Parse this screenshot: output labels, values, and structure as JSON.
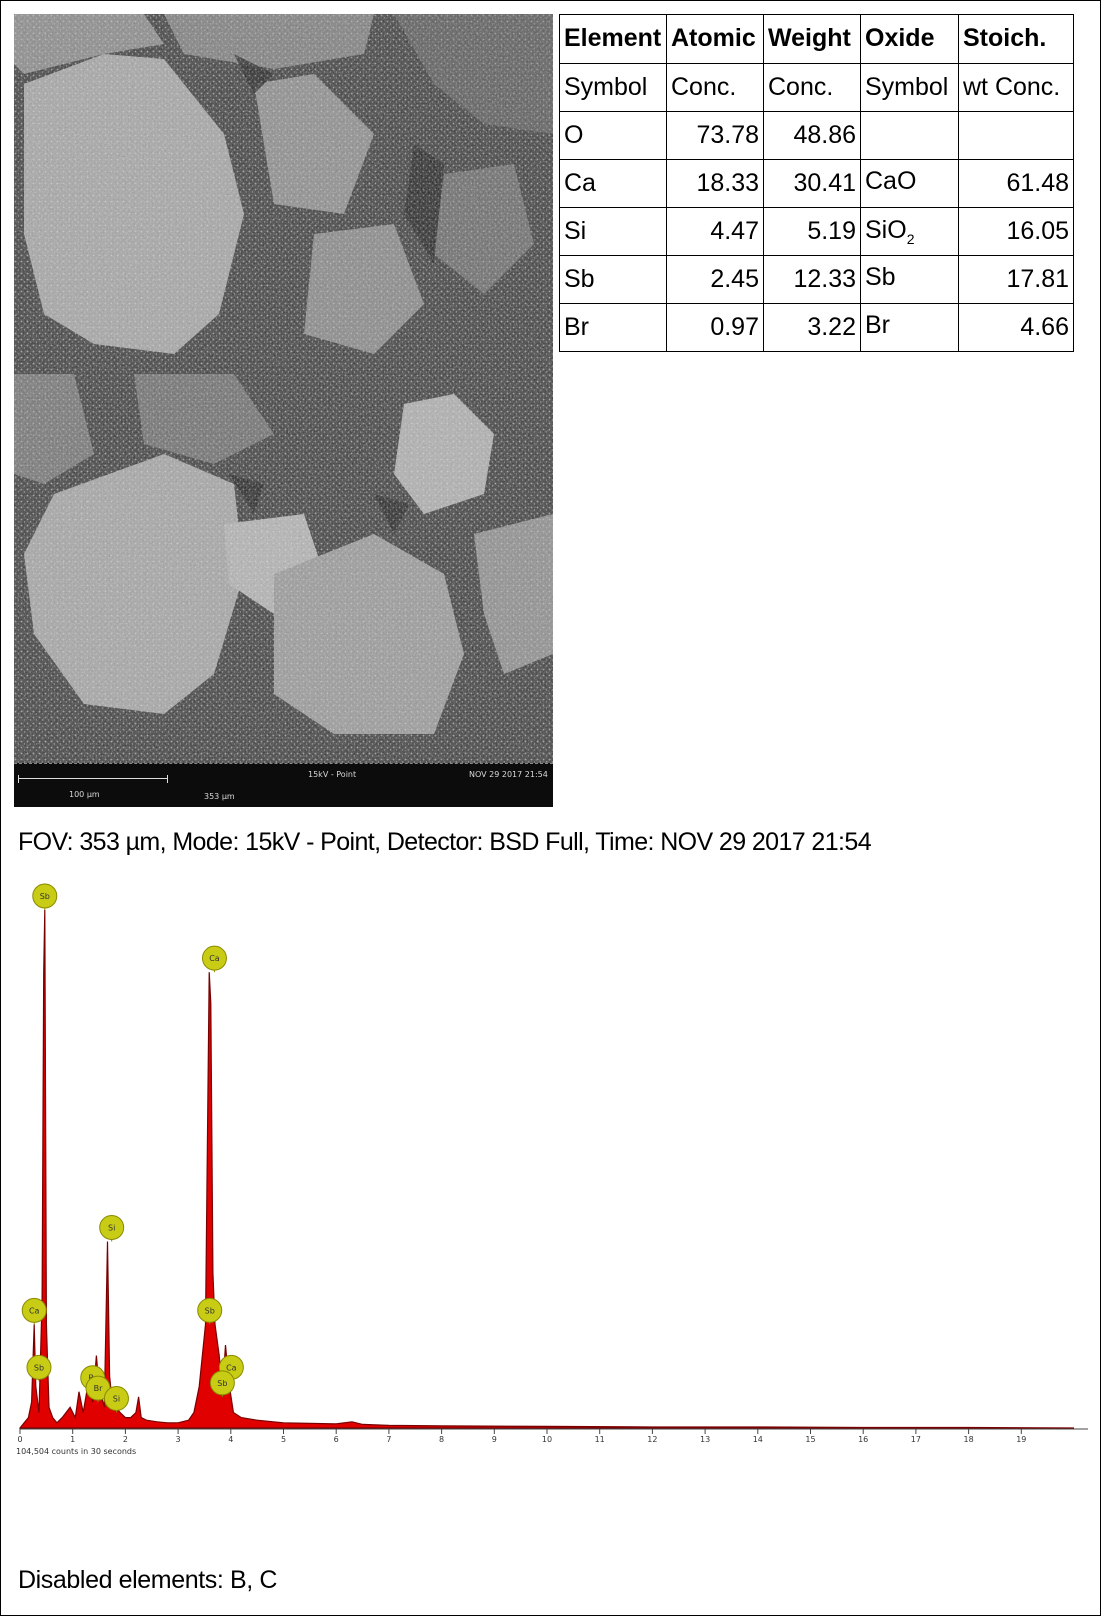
{
  "sem_image": {
    "scale_label": "100 µm",
    "fov_label": "353 µm",
    "mode_label": "15kV - Point",
    "timestamp": "NOV 29 2017 21:54"
  },
  "table": {
    "headers": [
      [
        "Element",
        "Symbol"
      ],
      [
        "Atomic",
        "Conc."
      ],
      [
        "Weight",
        "Conc."
      ],
      [
        "Oxide",
        "Symbol"
      ],
      [
        "Stoich.",
        "wt Conc."
      ]
    ],
    "rows": [
      {
        "element": "O",
        "atomic": "73.78",
        "weight": "48.86",
        "oxide": "",
        "oxide_sub": "",
        "stoich": ""
      },
      {
        "element": "Ca",
        "atomic": "18.33",
        "weight": "30.41",
        "oxide": "CaO",
        "oxide_sub": "",
        "stoich": "61.48"
      },
      {
        "element": "Si",
        "atomic": "4.47",
        "weight": "5.19",
        "oxide": "SiO",
        "oxide_sub": "2",
        "stoich": "16.05"
      },
      {
        "element": "Sb",
        "atomic": "2.45",
        "weight": "12.33",
        "oxide": "Sb",
        "oxide_sub": "",
        "stoich": "17.81"
      },
      {
        "element": "Br",
        "atomic": "0.97",
        "weight": "3.22",
        "oxide": "Br",
        "oxide_sub": "",
        "stoich": "4.66"
      }
    ]
  },
  "caption": "FOV: 353 µm, Mode: 15kV - Point, Detector: BSD Full, Time: NOV 29 2017 21:54",
  "footer": "Disabled elements: B, C",
  "colors": {
    "spectrum_fill": "#e00000",
    "spectrum_edge": "#7a0000",
    "marker_fill": "#c8cc14",
    "marker_edge": "#8a8a00"
  },
  "chart_data": {
    "type": "area",
    "title": "",
    "xlabel": "",
    "ylabel": "",
    "xlim": [
      0,
      20
    ],
    "ylim": [
      0,
      100
    ],
    "x_ticks": [
      0,
      1,
      2,
      3,
      4,
      5,
      6,
      7,
      8,
      9,
      10,
      11,
      12,
      13,
      14,
      15,
      16,
      17,
      18,
      19
    ],
    "counts_label": "104,504 counts in 30 seconds",
    "series": [
      {
        "x": [
          0,
          0.08,
          0.16,
          0.22,
          0.27,
          0.3,
          0.36,
          0.42,
          0.45,
          0.47,
          0.5,
          0.55,
          0.62,
          0.7,
          0.8,
          0.95,
          1.05,
          1.12,
          1.2,
          1.3,
          1.38,
          1.45,
          1.5,
          1.55,
          1.6,
          1.66,
          1.7,
          1.75,
          1.82,
          1.9,
          2.0,
          2.1,
          2.2,
          2.25,
          2.3,
          2.4,
          2.6,
          2.8,
          3.0,
          3.2,
          3.3,
          3.4,
          3.52,
          3.59,
          3.62,
          3.66,
          3.7,
          3.78,
          3.84,
          3.9,
          3.96,
          4.05,
          4.2,
          4.5,
          5,
          6,
          6.3,
          6.5,
          7,
          8,
          10,
          12,
          14,
          16,
          18,
          20
        ],
        "y": [
          0,
          1,
          2,
          5,
          20,
          8,
          3,
          25,
          88,
          100,
          20,
          4,
          2,
          1,
          2,
          4,
          2,
          7,
          3,
          9,
          5,
          14,
          8,
          6,
          4,
          36,
          10,
          5,
          4,
          3,
          2,
          2,
          3,
          6,
          2,
          1.5,
          1.2,
          1,
          1,
          1.5,
          3,
          8,
          20,
          88,
          82,
          30,
          20,
          14,
          7,
          16,
          9,
          3,
          2,
          1.5,
          1,
          0.8,
          1.2,
          0.7,
          0.5,
          0.4,
          0.3,
          0.2,
          0.2,
          0.1,
          0.1,
          0
        ]
      }
    ],
    "peak_markers": [
      {
        "label": "Sb",
        "energy": 0.47,
        "height": 100
      },
      {
        "label": "Ca",
        "energy": 3.69,
        "height": 88
      },
      {
        "label": "Ca",
        "energy": 0.27,
        "height": 20
      },
      {
        "label": "Sb",
        "energy": 0.36,
        "height": 9
      },
      {
        "label": "Si",
        "energy": 1.74,
        "height": 36
      },
      {
        "label": "Sb",
        "energy": 3.6,
        "height": 20
      },
      {
        "label": "Br",
        "energy": 1.38,
        "height": 7
      },
      {
        "label": "Br",
        "energy": 1.48,
        "height": 5
      },
      {
        "label": "Si",
        "energy": 1.83,
        "height": 3
      },
      {
        "label": "Ca",
        "energy": 4.01,
        "height": 9
      },
      {
        "label": "Sb",
        "energy": 3.84,
        "height": 6
      }
    ]
  }
}
